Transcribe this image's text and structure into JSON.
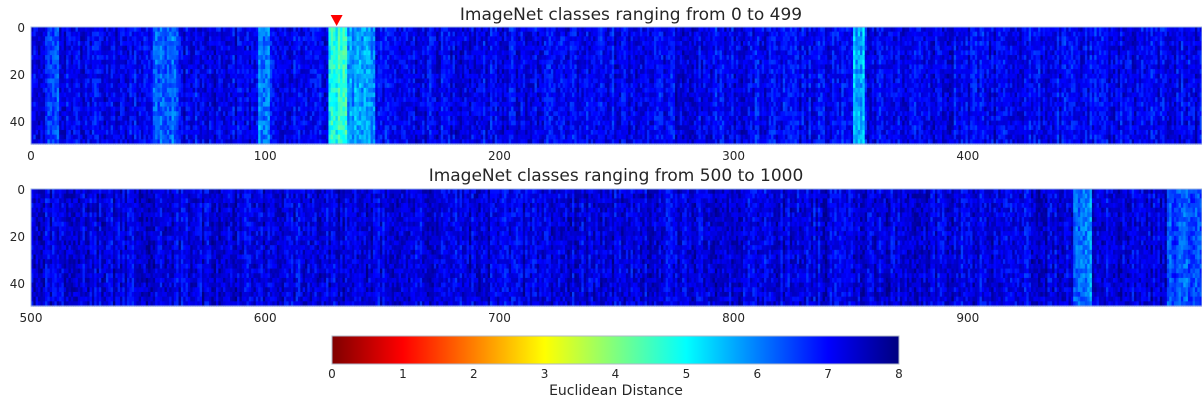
{
  "chart_data": [
    {
      "type": "heatmap",
      "title": "ImageNet classes ranging from 0 to 499",
      "x_range": [
        0,
        499
      ],
      "y_range": [
        0,
        49
      ],
      "x_ticks": [
        "0",
        "100",
        "200",
        "300",
        "400"
      ],
      "y_ticks": [
        "0",
        "20",
        "40"
      ],
      "colormap": "jet",
      "bright_columns": [
        {
          "start": 127,
          "end": 135,
          "value": 4.8
        },
        {
          "start": 135,
          "end": 146,
          "value": 5.8
        },
        {
          "start": 97,
          "end": 101,
          "value": 6.0
        },
        {
          "start": 351,
          "end": 355,
          "value": 5.6
        },
        {
          "start": 52,
          "end": 62,
          "value": 6.3
        },
        {
          "start": 7,
          "end": 11,
          "value": 6.4
        }
      ],
      "marker": {
        "x": 130,
        "color": "#ff0000",
        "shape": "down-triangle"
      }
    },
    {
      "type": "heatmap",
      "title": "ImageNet classes ranging from 500 to 1000",
      "x_range": [
        500,
        999
      ],
      "y_range": [
        0,
        49
      ],
      "x_ticks": [
        "500",
        "600",
        "700",
        "800",
        "900"
      ],
      "y_ticks": [
        "0",
        "20",
        "40"
      ],
      "colormap": "jet",
      "bright_columns": [
        {
          "start": 945,
          "end": 952,
          "value": 6.0
        },
        {
          "start": 985,
          "end": 999,
          "value": 6.4
        }
      ]
    }
  ],
  "colorbar": {
    "label": "Euclidean Distance",
    "range": [
      0,
      8
    ],
    "ticks": [
      "0",
      "1",
      "2",
      "3",
      "4",
      "5",
      "6",
      "7",
      "8"
    ],
    "colormap": "jet",
    "colors": [
      "#7f0000",
      "#ff0000",
      "#ff7f00",
      "#ffff00",
      "#7fff7f",
      "#00ffff",
      "#007fff",
      "#0000ff",
      "#00007f"
    ]
  }
}
